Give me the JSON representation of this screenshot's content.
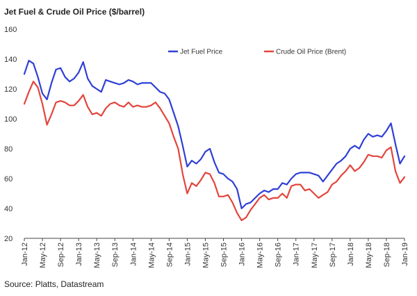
{
  "chart_data": {
    "type": "line",
    "title": "Jet Fuel & Crude Oil Price ($/barrel)",
    "xlabel": "",
    "ylabel": "",
    "ylim": [
      20,
      160
    ],
    "yticks": [
      20,
      40,
      60,
      80,
      100,
      120,
      140,
      160
    ],
    "grid": false,
    "legend_position": "top-right",
    "x_tick_labels": [
      "Jan-12",
      "May-12",
      "Sep-12",
      "Jan-13",
      "May-13",
      "Sep-13",
      "Jan-14",
      "May-14",
      "Sep-14",
      "Jan-15",
      "May-15",
      "Sep-15",
      "Jan-16",
      "May-16",
      "Sep-16",
      "Jan-17",
      "May-17",
      "Sep-17",
      "Jan-18",
      "May-18",
      "Sep-18",
      "Jan-19"
    ],
    "x": [
      "Jan-12",
      "Feb-12",
      "Mar-12",
      "Apr-12",
      "May-12",
      "Jun-12",
      "Jul-12",
      "Aug-12",
      "Sep-12",
      "Oct-12",
      "Nov-12",
      "Dec-12",
      "Jan-13",
      "Feb-13",
      "Mar-13",
      "Apr-13",
      "May-13",
      "Jun-13",
      "Jul-13",
      "Aug-13",
      "Sep-13",
      "Oct-13",
      "Nov-13",
      "Dec-13",
      "Jan-14",
      "Feb-14",
      "Mar-14",
      "Apr-14",
      "May-14",
      "Jun-14",
      "Jul-14",
      "Aug-14",
      "Sep-14",
      "Oct-14",
      "Nov-14",
      "Dec-14",
      "Jan-15",
      "Feb-15",
      "Mar-15",
      "Apr-15",
      "May-15",
      "Jun-15",
      "Jul-15",
      "Aug-15",
      "Sep-15",
      "Oct-15",
      "Nov-15",
      "Dec-15",
      "Jan-16",
      "Feb-16",
      "Mar-16",
      "Apr-16",
      "May-16",
      "Jun-16",
      "Jul-16",
      "Aug-16",
      "Sep-16",
      "Oct-16",
      "Nov-16",
      "Dec-16",
      "Jan-17",
      "Feb-17",
      "Mar-17",
      "Apr-17",
      "May-17",
      "Jun-17",
      "Jul-17",
      "Aug-17",
      "Sep-17",
      "Oct-17",
      "Nov-17",
      "Dec-17",
      "Jan-18",
      "Feb-18",
      "Mar-18",
      "Apr-18",
      "May-18",
      "Jun-18",
      "Jul-18",
      "Aug-18",
      "Sep-18",
      "Oct-18",
      "Nov-18",
      "Dec-18",
      "Jan-19"
    ],
    "series": [
      {
        "name": "Jet Fuel Price",
        "color": "#2E3FD6",
        "values": [
          130,
          139,
          137,
          128,
          117,
          113,
          124,
          133,
          134,
          128,
          125,
          127,
          131,
          138,
          127,
          122,
          120,
          118,
          126,
          125,
          124,
          123,
          124,
          126,
          125,
          123,
          124,
          124,
          124,
          121,
          118,
          117,
          113,
          104,
          95,
          82,
          68,
          72,
          70,
          73,
          78,
          80,
          71,
          64,
          63,
          60,
          58,
          53,
          40,
          43,
          44,
          47,
          50,
          52,
          51,
          53,
          53,
          57,
          56,
          60,
          63,
          64,
          64,
          64,
          63,
          62,
          58,
          62,
          66,
          70,
          72,
          75,
          80,
          82,
          80,
          86,
          90,
          88,
          89,
          88,
          92,
          97,
          83,
          70,
          75
        ]
      },
      {
        "name": "Crude Oil Price (Brent)",
        "color": "#E2453C",
        "values": [
          110,
          118,
          125,
          121,
          110,
          96,
          103,
          111,
          112,
          111,
          109,
          109,
          112,
          116,
          108,
          103,
          104,
          102,
          107,
          110,
          111,
          109,
          108,
          111,
          108,
          109,
          108,
          108,
          109,
          111,
          107,
          102,
          97,
          88,
          80,
          63,
          50,
          57,
          55,
          59,
          64,
          63,
          57,
          48,
          48,
          49,
          44,
          37,
          32,
          34,
          39,
          43,
          47,
          49,
          46,
          47,
          47,
          50,
          47,
          55,
          56,
          56,
          52,
          53,
          50,
          47,
          49,
          51,
          56,
          58,
          62,
          65,
          69,
          65,
          67,
          71,
          76,
          75,
          75,
          74,
          79,
          81,
          65,
          57,
          61
        ]
      }
    ]
  },
  "source": "Source: Platts, Datastream"
}
